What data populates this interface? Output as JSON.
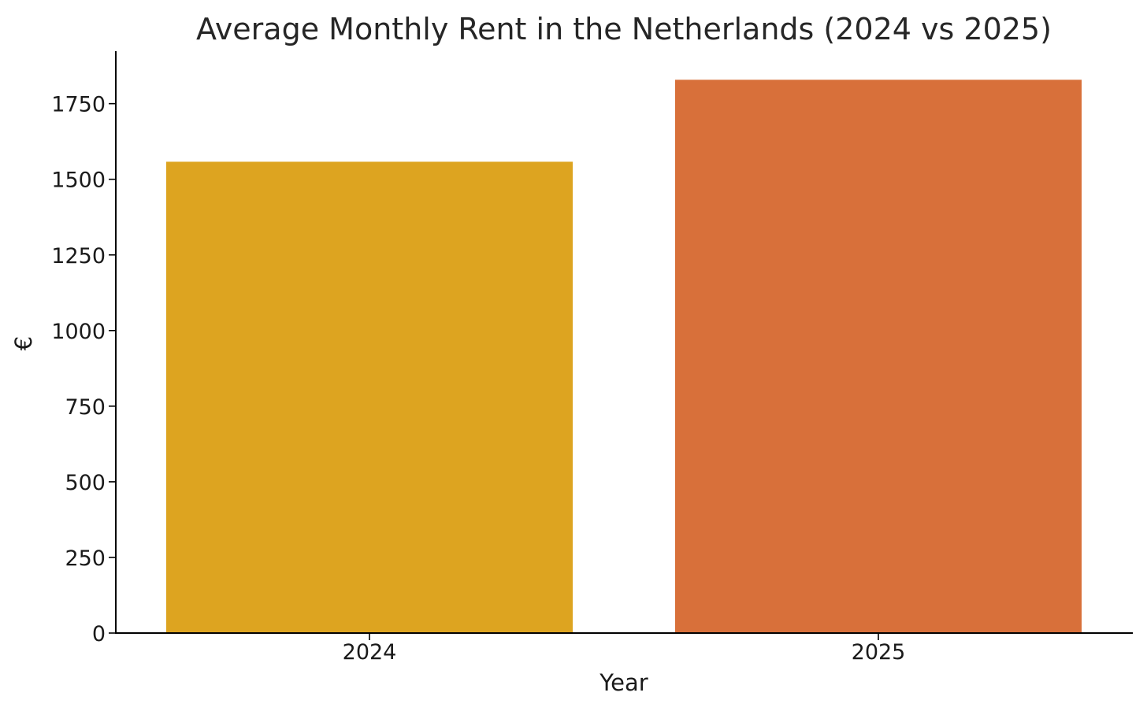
{
  "chart_data": {
    "type": "bar",
    "title": "Average Monthly Rent in the Netherlands (2024 vs 2025)",
    "xlabel": "Year",
    "ylabel": "€",
    "categories": [
      "2024",
      "2025"
    ],
    "values": [
      1558,
      1829
    ],
    "colors": [
      "#DDA420",
      "#D8703A"
    ],
    "ylim": [
      0,
      1920
    ],
    "yticks": [
      0,
      250,
      500,
      750,
      1000,
      1250,
      1500,
      1750
    ],
    "grid": false,
    "legend": "none"
  }
}
